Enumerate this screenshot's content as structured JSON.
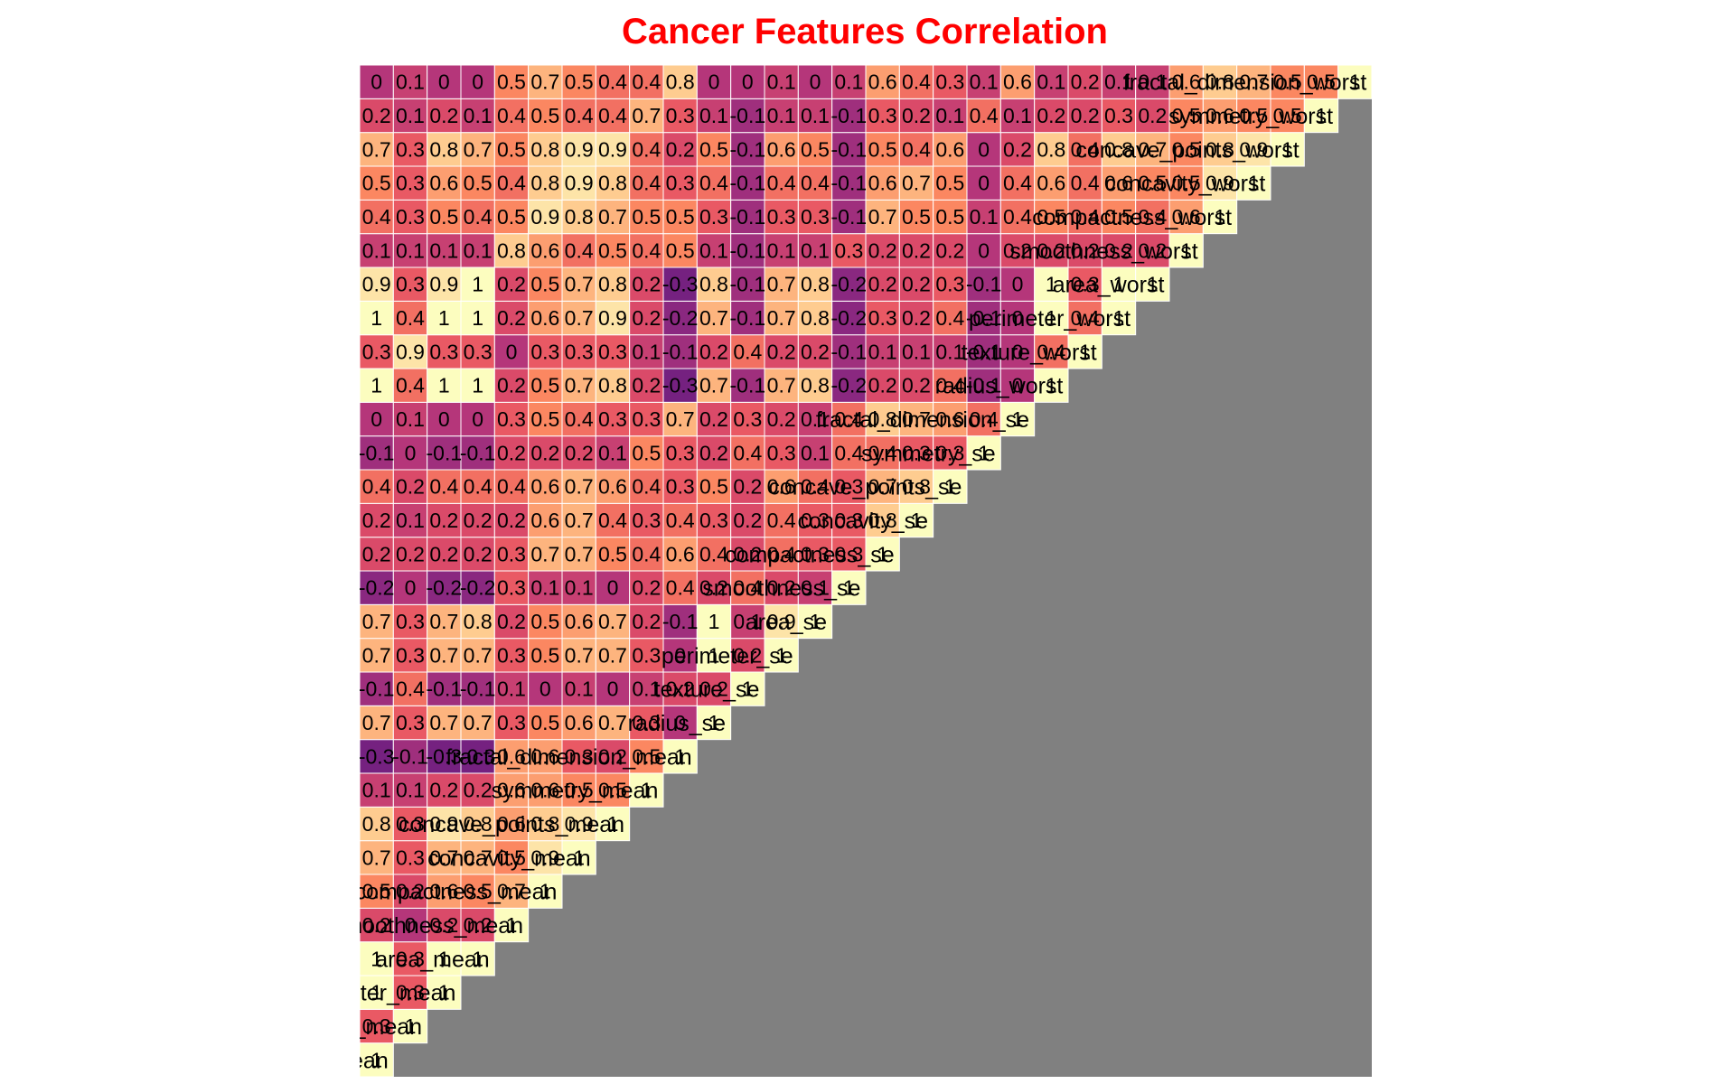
{
  "chart_data": {
    "type": "heatmap",
    "title": "Cancer Features Correlation",
    "xlabel": "",
    "ylabel": "",
    "layout": "lower-triangle",
    "colorscale": "magma",
    "vmin": -1,
    "vmax": 1,
    "labels": [
      "radius_mean",
      "texture_mean",
      "perimeter_mean",
      "area_mean",
      "smoothness_mean",
      "compactness_mean",
      "concavity_mean",
      "concave_points_mean",
      "symmetry_mean",
      "fractal_dimension_mean",
      "radius_se",
      "texture_se",
      "perimeter_se",
      "area_se",
      "smoothness_se",
      "compactness_se",
      "concavity_se",
      "concave_points_se",
      "symmetry_se",
      "fractal_dimension_se",
      "radius_worst",
      "texture_worst",
      "perimeter_worst",
      "area_worst",
      "smoothness_worst",
      "compactness_worst",
      "concavity_worst",
      "concave_points_worst",
      "symmetry_worst",
      "fractal_dimension_worst"
    ],
    "matrix": [
      [
        1,
        0.3,
        1,
        1,
        0.2,
        0.5,
        0.7,
        0.8,
        0.1,
        -0.3,
        0.7,
        -0.1,
        0.7,
        0.7,
        -0.2,
        0.2,
        0.2,
        0.4,
        -0.1,
        0,
        1,
        0.3,
        1,
        0.9,
        0.1,
        0.4,
        0.5,
        0.7,
        0.2,
        0
      ],
      [
        0.3,
        1,
        0.3,
        0.3,
        0,
        0.2,
        0.3,
        0.3,
        0.1,
        -0.1,
        0.3,
        0.4,
        0.3,
        0.3,
        0,
        0.2,
        0.1,
        0.2,
        0,
        0.1,
        0.4,
        0.9,
        0.4,
        0.3,
        0.1,
        0.3,
        0.3,
        0.3,
        0.1,
        0.1
      ],
      [
        1,
        0.3,
        1,
        1,
        0.2,
        0.6,
        0.7,
        0.9,
        0.2,
        -0.3,
        0.7,
        -0.1,
        0.7,
        0.7,
        -0.2,
        0.2,
        0.2,
        0.4,
        -0.1,
        0,
        1,
        0.3,
        1,
        0.9,
        0.1,
        0.5,
        0.6,
        0.8,
        0.2,
        0
      ],
      [
        1,
        0.3,
        1,
        1,
        0.2,
        0.5,
        0.7,
        0.8,
        0.2,
        -0.3,
        0.7,
        -0.1,
        0.7,
        0.8,
        -0.2,
        0.2,
        0.2,
        0.4,
        -0.1,
        0,
        1,
        0.3,
        1,
        1,
        0.1,
        0.4,
        0.5,
        0.7,
        0.1,
        0
      ],
      [
        0.2,
        0,
        0.2,
        0.2,
        1,
        0.7,
        0.5,
        0.6,
        0.6,
        0.6,
        0.3,
        0.1,
        0.3,
        0.2,
        0.3,
        0.3,
        0.2,
        0.4,
        0.2,
        0.3,
        0.2,
        0,
        0.2,
        0.2,
        0.8,
        0.5,
        0.4,
        0.5,
        0.4,
        0.5
      ],
      [
        0.5,
        0.2,
        0.6,
        0.5,
        0.7,
        1,
        0.9,
        0.8,
        0.6,
        0.6,
        0.5,
        0,
        0.5,
        0.5,
        0.1,
        0.7,
        0.6,
        0.6,
        0.2,
        0.5,
        0.5,
        0.3,
        0.6,
        0.5,
        0.6,
        0.9,
        0.8,
        0.8,
        0.5,
        0.7
      ],
      [
        0.7,
        0.3,
        0.7,
        0.7,
        0.5,
        0.9,
        1,
        0.9,
        0.5,
        0.3,
        0.6,
        0.1,
        0.7,
        0.6,
        0.1,
        0.7,
        0.7,
        0.7,
        0.2,
        0.4,
        0.7,
        0.3,
        0.7,
        0.7,
        0.4,
        0.8,
        0.9,
        0.9,
        0.4,
        0.5
      ],
      [
        0.8,
        0.3,
        0.9,
        0.8,
        0.6,
        0.8,
        0.9,
        1,
        0.5,
        0.2,
        0.7,
        0,
        0.7,
        0.7,
        0,
        0.5,
        0.4,
        0.6,
        0.1,
        0.3,
        0.8,
        0.3,
        0.9,
        0.8,
        0.5,
        0.7,
        0.8,
        0.9,
        0.4,
        0.4
      ],
      [
        0.1,
        0.1,
        0.2,
        0.2,
        0.6,
        0.6,
        0.5,
        0.5,
        1,
        0.5,
        0.3,
        0.1,
        0.3,
        0.2,
        0.2,
        0.4,
        0.3,
        0.4,
        0.5,
        0.3,
        0.2,
        0.1,
        0.2,
        0.2,
        0.4,
        0.5,
        0.4,
        0.4,
        0.7,
        0.4
      ],
      [
        -0.3,
        -0.1,
        -0.3,
        -0.3,
        0.6,
        0.6,
        0.3,
        0.2,
        0.5,
        1,
        0,
        0.2,
        0,
        -0.1,
        0.4,
        0.6,
        0.4,
        0.3,
        0.3,
        0.7,
        -0.3,
        -0.1,
        -0.2,
        -0.3,
        0.5,
        0.5,
        0.3,
        0.2,
        0.3,
        0.8
      ],
      [
        0.7,
        0.3,
        0.7,
        0.7,
        0.3,
        0.5,
        0.6,
        0.7,
        0.3,
        0,
        1,
        0.2,
        1,
        1,
        0.2,
        0.4,
        0.3,
        0.5,
        0.2,
        0.2,
        0.7,
        0.2,
        0.7,
        0.8,
        0.1,
        0.3,
        0.4,
        0.5,
        0.1,
        0
      ],
      [
        -0.1,
        0.4,
        -0.1,
        -0.1,
        0.1,
        0,
        0.1,
        0,
        0.1,
        0.2,
        0.2,
        1,
        0.2,
        0.1,
        0.4,
        0.2,
        0.2,
        0.2,
        0.4,
        0.3,
        -0.1,
        0.4,
        -0.1,
        -0.1,
        -0.1,
        -0.1,
        -0.1,
        -0.1,
        -0.1,
        0
      ],
      [
        0.7,
        0.3,
        0.7,
        0.7,
        0.3,
        0.5,
        0.7,
        0.7,
        0.3,
        0,
        1,
        0.2,
        1,
        0.9,
        0.2,
        0.4,
        0.4,
        0.6,
        0.3,
        0.2,
        0.7,
        0.2,
        0.7,
        0.7,
        0.1,
        0.3,
        0.4,
        0.6,
        0.1,
        0.1
      ],
      [
        0.7,
        0.3,
        0.7,
        0.8,
        0.2,
        0.5,
        0.6,
        0.7,
        0.2,
        -0.1,
        1,
        0.1,
        0.9,
        1,
        0.1,
        0.3,
        0.3,
        0.4,
        0.1,
        0.1,
        0.8,
        0.2,
        0.8,
        0.8,
        0.1,
        0.3,
        0.4,
        0.5,
        0.1,
        0
      ],
      [
        -0.2,
        0,
        -0.2,
        -0.2,
        0.3,
        0.1,
        0.1,
        0,
        0.2,
        0.4,
        0.2,
        0.4,
        0.2,
        0.1,
        1,
        0.3,
        0.3,
        0.3,
        0.4,
        0.4,
        -0.2,
        -0.1,
        -0.2,
        -0.2,
        0.3,
        -0.1,
        -0.1,
        -0.1,
        -0.1,
        0.1
      ],
      [
        0.2,
        0.2,
        0.2,
        0.2,
        0.3,
        0.7,
        0.7,
        0.5,
        0.4,
        0.6,
        0.4,
        0.2,
        0.4,
        0.3,
        0.3,
        1,
        0.8,
        0.7,
        0.4,
        0.8,
        0.2,
        0.1,
        0.3,
        0.2,
        0.2,
        0.7,
        0.6,
        0.5,
        0.3,
        0.6
      ],
      [
        0.2,
        0.1,
        0.2,
        0.2,
        0.2,
        0.6,
        0.7,
        0.4,
        0.3,
        0.4,
        0.3,
        0.2,
        0.4,
        0.3,
        0.3,
        0.8,
        1,
        0.8,
        0.3,
        0.7,
        0.2,
        0.1,
        0.2,
        0.2,
        0.2,
        0.5,
        0.7,
        0.4,
        0.2,
        0.4
      ],
      [
        0.4,
        0.2,
        0.4,
        0.4,
        0.4,
        0.6,
        0.7,
        0.6,
        0.4,
        0.3,
        0.5,
        0.2,
        0.6,
        0.4,
        0.3,
        0.7,
        0.8,
        1,
        0.3,
        0.6,
        0.4,
        0.1,
        0.4,
        0.3,
        0.2,
        0.5,
        0.5,
        0.6,
        0.1,
        0.3
      ],
      [
        -0.1,
        0,
        -0.1,
        -0.1,
        0.2,
        0.2,
        0.2,
        0.1,
        0.5,
        0.3,
        0.2,
        0.4,
        0.3,
        0.1,
        0.4,
        0.4,
        0.3,
        0.3,
        1,
        0.4,
        -0.1,
        -0.1,
        -0.1,
        -0.1,
        0,
        0.1,
        0,
        0,
        0.4,
        0.1
      ],
      [
        0,
        0.1,
        0,
        0,
        0.3,
        0.5,
        0.4,
        0.3,
        0.3,
        0.7,
        0.2,
        0.3,
        0.2,
        0.1,
        0.4,
        0.8,
        0.7,
        0.6,
        0.4,
        1,
        0,
        0,
        0,
        0,
        0.2,
        0.4,
        0.4,
        0.2,
        0.1,
        0.6
      ],
      [
        1,
        0.4,
        1,
        1,
        0.2,
        0.5,
        0.7,
        0.8,
        0.2,
        -0.3,
        0.7,
        -0.1,
        0.7,
        0.8,
        -0.2,
        0.2,
        0.2,
        0.4,
        -0.1,
        0,
        1,
        0.4,
        1,
        1,
        0.2,
        0.5,
        0.6,
        0.8,
        0.2,
        0.1
      ],
      [
        0.3,
        0.9,
        0.3,
        0.3,
        0,
        0.3,
        0.3,
        0.3,
        0.1,
        -0.1,
        0.2,
        0.4,
        0.2,
        0.2,
        -0.1,
        0.1,
        0.1,
        0.1,
        -0.1,
        0,
        0.4,
        1,
        0.4,
        0.3,
        0.2,
        0.4,
        0.4,
        0.4,
        0.2,
        0.2
      ],
      [
        1,
        0.4,
        1,
        1,
        0.2,
        0.6,
        0.7,
        0.9,
        0.2,
        -0.2,
        0.7,
        -0.1,
        0.7,
        0.8,
        -0.2,
        0.3,
        0.2,
        0.4,
        -0.1,
        0,
        1,
        0.4,
        1,
        1,
        0.2,
        0.5,
        0.6,
        0.8,
        0.3,
        0.1
      ],
      [
        0.9,
        0.3,
        0.9,
        1,
        0.2,
        0.5,
        0.7,
        0.8,
        0.2,
        -0.3,
        0.8,
        -0.1,
        0.7,
        0.8,
        -0.2,
        0.2,
        0.2,
        0.3,
        -0.1,
        0,
        1,
        0.3,
        1,
        1,
        0.2,
        0.4,
        0.5,
        0.7,
        0.2,
        0.1
      ],
      [
        0.1,
        0.1,
        0.1,
        0.1,
        0.8,
        0.6,
        0.4,
        0.5,
        0.4,
        0.5,
        0.1,
        -0.1,
        0.1,
        0.1,
        0.3,
        0.2,
        0.2,
        0.2,
        0,
        0.2,
        0.2,
        0.2,
        0.2,
        0.2,
        1,
        0.6,
        0.5,
        0.5,
        0.5,
        0.6
      ],
      [
        0.4,
        0.3,
        0.5,
        0.4,
        0.5,
        0.9,
        0.8,
        0.7,
        0.5,
        0.5,
        0.3,
        -0.1,
        0.3,
        0.3,
        -0.1,
        0.7,
        0.5,
        0.5,
        0.1,
        0.4,
        0.5,
        0.4,
        0.5,
        0.4,
        0.6,
        1,
        0.9,
        0.8,
        0.6,
        0.8
      ],
      [
        0.5,
        0.3,
        0.6,
        0.5,
        0.4,
        0.8,
        0.9,
        0.8,
        0.4,
        0.3,
        0.4,
        -0.1,
        0.4,
        0.4,
        -0.1,
        0.6,
        0.7,
        0.5,
        0,
        0.4,
        0.6,
        0.4,
        0.6,
        0.5,
        0.5,
        0.9,
        1,
        0.9,
        0.5,
        0.7
      ],
      [
        0.7,
        0.3,
        0.8,
        0.7,
        0.5,
        0.8,
        0.9,
        0.9,
        0.4,
        0.2,
        0.5,
        -0.1,
        0.6,
        0.5,
        -0.1,
        0.5,
        0.4,
        0.6,
        0,
        0.2,
        0.8,
        0.4,
        0.8,
        0.7,
        0.5,
        0.8,
        0.9,
        1,
        0.5,
        0.5
      ],
      [
        0.2,
        0.1,
        0.2,
        0.1,
        0.4,
        0.5,
        0.4,
        0.4,
        0.7,
        0.3,
        0.1,
        -0.1,
        0.1,
        0.1,
        -0.1,
        0.3,
        0.2,
        0.1,
        0.4,
        0.1,
        0.2,
        0.2,
        0.3,
        0.2,
        0.5,
        0.6,
        0.5,
        0.5,
        1,
        0.5
      ],
      [
        0,
        0.1,
        0,
        0,
        0.5,
        0.7,
        0.5,
        0.4,
        0.4,
        0.8,
        0,
        0,
        0.1,
        0,
        0.1,
        0.6,
        0.4,
        0.3,
        0.1,
        0.6,
        0.1,
        0.2,
        0.1,
        0.1,
        0.6,
        0.8,
        0.7,
        0.5,
        0.5,
        1
      ]
    ]
  }
}
